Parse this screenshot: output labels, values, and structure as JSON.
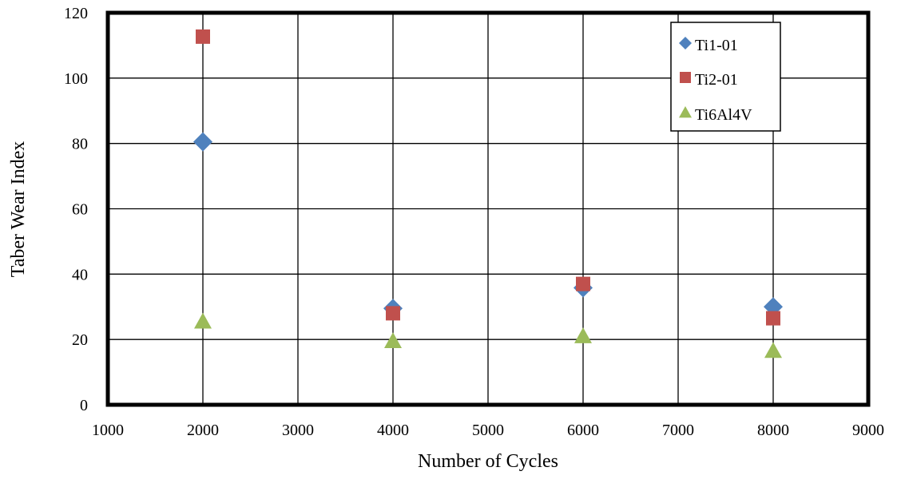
{
  "chart_data": {
    "type": "scatter",
    "title": "",
    "xlabel": "Number of Cycles",
    "ylabel": "Taber Wear Index",
    "xlim": [
      1000,
      9000
    ],
    "ylim": [
      0,
      120
    ],
    "x_ticks": [
      1000,
      2000,
      3000,
      4000,
      5000,
      6000,
      7000,
      8000,
      9000
    ],
    "y_ticks": [
      0,
      20,
      40,
      60,
      80,
      100,
      120
    ],
    "grid": true,
    "legend_position": "top-right",
    "series": [
      {
        "name": "Ti1-01",
        "marker": "diamond",
        "color": "#4F81BD",
        "points": [
          {
            "x": 2000,
            "y": 80.5
          },
          {
            "x": 4000,
            "y": 29.5
          },
          {
            "x": 6000,
            "y": 35.8
          },
          {
            "x": 8000,
            "y": 30.0
          }
        ]
      },
      {
        "name": "Ti2-01",
        "marker": "square",
        "color": "#C0504D",
        "points": [
          {
            "x": 2000,
            "y": 112.7
          },
          {
            "x": 4000,
            "y": 28.0
          },
          {
            "x": 6000,
            "y": 37.0
          },
          {
            "x": 8000,
            "y": 26.5
          }
        ]
      },
      {
        "name": "Ti6Al4V",
        "marker": "triangle",
        "color": "#9BBB59",
        "points": [
          {
            "x": 2000,
            "y": 25.5
          },
          {
            "x": 4000,
            "y": 19.5
          },
          {
            "x": 6000,
            "y": 21.0
          },
          {
            "x": 8000,
            "y": 16.5
          }
        ]
      }
    ]
  }
}
